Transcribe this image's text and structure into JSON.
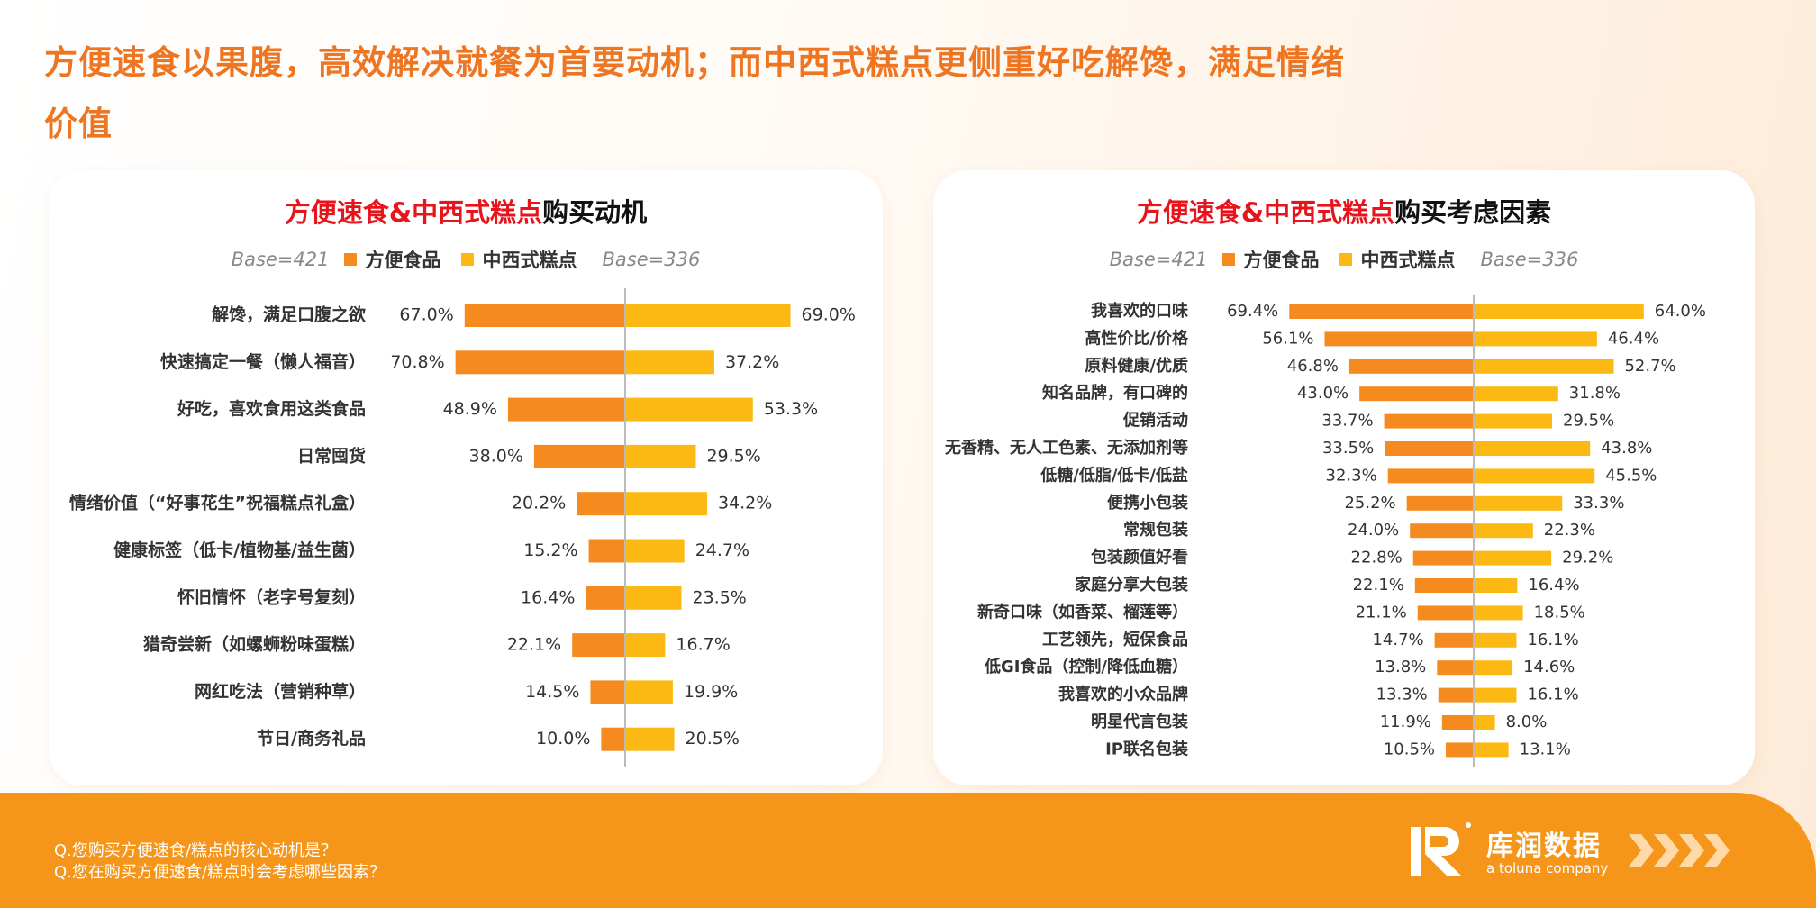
{
  "headline": "方便速食以果腹，高效解决就餐为首要动机；而中西式糕点更侧重好吃解馋，满足情绪价值",
  "chart_data": [
    {
      "type": "butterfly",
      "title": {
        "highlight": "方便速食&中西式糕点",
        "rest": "购买动机"
      },
      "categories": [
        "解馋，满足口腹之欲",
        "快速搞定一餐（懒人福音）",
        "好吃，喜欢食用这类食品",
        "日常囤货",
        "情绪价值（“好事花生”祝福糕点礼盒）",
        "健康标签（低卡/植物基/益生菌）",
        "怀旧情怀（老字号复刻）",
        "猎奇尝新（如螺蛳粉味蛋糕）",
        "网红吃法（营销种草）",
        "节日/商务礼品"
      ],
      "series": [
        {
          "name": "方便食品",
          "base": "Base=421",
          "color": "#f58a1f",
          "values": [
            67.0,
            70.8,
            48.9,
            38.0,
            20.2,
            15.2,
            16.4,
            22.1,
            14.5,
            10.0
          ],
          "value_labels": [
            "67.0%",
            "70.8%",
            "48.9%",
            "38.0%",
            "20.2%",
            "15.2%",
            "16.4%",
            "22.1%",
            "14.5%",
            "10.0%"
          ]
        },
        {
          "name": "中西式糕点",
          "base": "Base=336",
          "color": "#fdb913",
          "values": [
            69.0,
            37.2,
            53.3,
            29.5,
            34.2,
            24.7,
            23.5,
            16.7,
            19.9,
            20.5
          ],
          "value_labels": [
            "69.0%",
            "37.2%",
            "53.3%",
            "29.5%",
            "34.2%",
            "24.7%",
            "23.5%",
            "16.7%",
            "19.9%",
            "20.5%"
          ]
        }
      ]
    },
    {
      "type": "butterfly",
      "title": {
        "highlight": "方便速食&中西式糕点",
        "rest": "购买考虑因素"
      },
      "categories": [
        "我喜欢的口味",
        "高性价比/价格",
        "原料健康/优质",
        "知名品牌，有口碑的",
        "促销活动",
        "无香精、无人工色素、无添加剂等",
        "低糖/低脂/低卡/低盐",
        "便携小包装",
        "常规包装",
        "包装颜值好看",
        "家庭分享大包装",
        "新奇口味（如香菜、榴莲等）",
        "工艺领先，短保食品",
        "低GI食品（控制/降低血糖）",
        "我喜欢的小众品牌",
        "明星代言包装",
        "IP联名包装"
      ],
      "series": [
        {
          "name": "方便食品",
          "base": "Base=421",
          "color": "#f58a1f",
          "values": [
            69.4,
            56.1,
            46.8,
            43.0,
            33.7,
            33.5,
            32.3,
            25.2,
            24.0,
            22.8,
            22.1,
            21.1,
            14.7,
            13.8,
            13.3,
            11.9,
            10.5
          ],
          "value_labels": [
            "69.4%",
            "56.1%",
            "46.8%",
            "43.0%",
            "33.7%",
            "33.5%",
            "32.3%",
            "25.2%",
            "24.0%",
            "22.8%",
            "22.1%",
            "21.1%",
            "14.7%",
            "13.8%",
            "13.3%",
            "11.9%",
            "10.5%"
          ]
        },
        {
          "name": "中西式糕点",
          "base": "Base=336",
          "color": "#fdb913",
          "values": [
            64.0,
            46.4,
            52.7,
            31.8,
            29.5,
            43.8,
            45.5,
            33.3,
            22.3,
            29.2,
            16.4,
            18.5,
            16.1,
            14.6,
            16.1,
            8.0,
            13.1
          ],
          "value_labels": [
            "64.0%",
            "46.4%",
            "52.7%",
            "31.8%",
            "29.5%",
            "43.8%",
            "45.5%",
            "33.3%",
            "22.3%",
            "29.2%",
            "16.4%",
            "18.5%",
            "16.1%",
            "14.6%",
            "16.1%",
            "8.0%",
            "13.1%"
          ]
        }
      ]
    }
  ],
  "footer": {
    "questions": [
      "Q.您购买方便速食/糕点的核心动机是？",
      "Q.您在购买方便速食/糕点时会考虑哪些因素？"
    ],
    "brand": "库润数据",
    "brand_sub": "a toluna company"
  }
}
